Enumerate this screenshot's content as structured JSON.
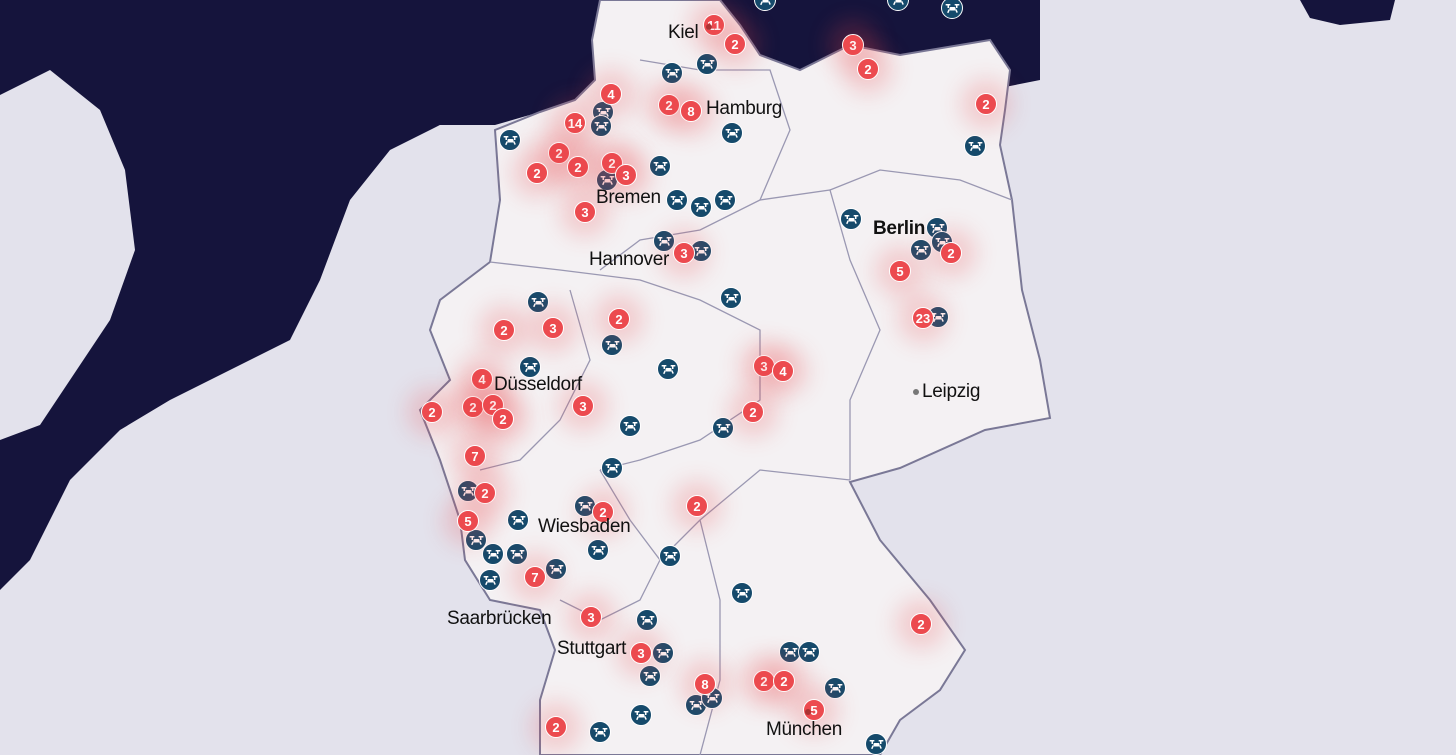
{
  "colors": {
    "sea": "#15143c",
    "land_foreign": "#e3e2ec",
    "land_germany": "#f4f1f3",
    "count_marker": "#ec4a4f",
    "drone_marker": "#154a6b"
  },
  "cities": [
    {
      "name": "Kiel",
      "capital": false
    },
    {
      "name": "Hamburg",
      "capital": false
    },
    {
      "name": "Bremen",
      "capital": false
    },
    {
      "name": "Berlin",
      "capital": true
    },
    {
      "name": "Hannover",
      "capital": false
    },
    {
      "name": "Düsseldorf",
      "capital": false
    },
    {
      "name": "Leipzig",
      "capital": false
    },
    {
      "name": "Wiesbaden",
      "capital": false
    },
    {
      "name": "Saarbrücken",
      "capital": false
    },
    {
      "name": "Stuttgart",
      "capital": false
    },
    {
      "name": "München",
      "capital": false
    }
  ],
  "count_markers": [
    "11",
    "2",
    "3",
    "2",
    "2",
    "4",
    "14",
    "2",
    "8",
    "2",
    "2",
    "2",
    "2",
    "3",
    "3",
    "3",
    "5",
    "2",
    "23",
    "2",
    "3",
    "2",
    "4",
    "2",
    "2",
    "2",
    "2",
    "3",
    "3",
    "4",
    "2",
    "7",
    "2",
    "5",
    "2",
    "2",
    "7",
    "3",
    "3",
    "2",
    "8",
    "2",
    "2",
    "5",
    "2"
  ],
  "drone_marker_icon": "drone-icon"
}
